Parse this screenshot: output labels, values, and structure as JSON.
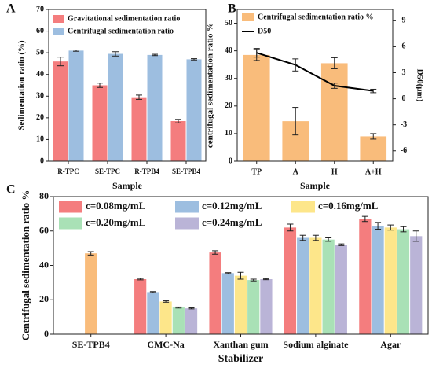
{
  "chart_data": [
    {
      "type": "bar",
      "panel": "A",
      "xlabel": "Sample",
      "ylabel": "Sedimentation ratio (%)",
      "categories": [
        "R-TPC",
        "SE-TPC",
        "R-TPB4",
        "SE-TPB4"
      ],
      "ylim": [
        0,
        70
      ],
      "yticks": [
        0,
        10,
        20,
        30,
        40,
        50,
        60,
        70
      ],
      "legend": "upper left",
      "series": [
        {
          "name": "Gravitational sedimentation ratio",
          "color": "#f47d7e",
          "values": [
            46,
            35,
            29.5,
            18.5
          ],
          "errors": [
            2,
            1,
            1,
            0.8
          ]
        },
        {
          "name": "Centrifugal sedimentation ratio",
          "color": "#9dbee0",
          "values": [
            51,
            49.5,
            49,
            47
          ],
          "errors": [
            0.3,
            1,
            0.3,
            0.3
          ]
        }
      ]
    },
    {
      "type": "bar",
      "panel": "B",
      "xlabel": "Sample",
      "ylabel": "centrifugal sedimentation ratio %",
      "y2label": "D50(μm)",
      "categories": [
        "TP",
        "A",
        "H",
        "A+H"
      ],
      "ylim": [
        0,
        55
      ],
      "yticks": [
        0,
        10,
        20,
        30,
        40,
        50
      ],
      "y2lim": [
        -7.2,
        10.3
      ],
      "y2ticks": [
        -6,
        -3,
        0,
        3,
        6,
        9
      ],
      "legend": "upper left",
      "series": [
        {
          "name": "Centrifugal sedimentation ratio %",
          "color": "#f9bc7b",
          "values": [
            38.5,
            14.5,
            35.5,
            9
          ],
          "errors": [
            2,
            5,
            2,
            1
          ]
        },
        {
          "name": "D50",
          "type": "line",
          "axis": "y2",
          "color": "#000000",
          "values": [
            5.3,
            3.9,
            1.5,
            0.9
          ],
          "errors": [
            0.5,
            0.7,
            0.3,
            0.2
          ]
        }
      ]
    },
    {
      "type": "bar",
      "panel": "C",
      "xlabel": "Stabilizer",
      "ylabel": "Centrifugal sedimentation ratio %",
      "categories": [
        "SE-TPB4",
        "CMC-Na",
        "Xanthan gum",
        "Sodium alginate",
        "Agar"
      ],
      "ylim": [
        0,
        80
      ],
      "yticks": [
        0,
        20,
        40,
        60,
        80
      ],
      "legend": "upper left",
      "series": [
        {
          "color": "#f9bc7b",
          "values": [
            47,
            null,
            null,
            null,
            null
          ],
          "errors": [
            1,
            null,
            null,
            null,
            null
          ]
        },
        {
          "name": "c=0.08mg/mL",
          "color": "#f47d7e",
          "values": [
            null,
            32,
            47.5,
            62,
            67
          ],
          "errors": [
            null,
            0.4,
            1,
            2,
            1.5
          ]
        },
        {
          "name": "c=0.12mg/mL",
          "color": "#9dbee0",
          "values": [
            null,
            24.5,
            35.5,
            56,
            63
          ],
          "errors": [
            null,
            0.3,
            0.3,
            1.5,
            2
          ]
        },
        {
          "name": "c=0.16mg/mL",
          "color": "#fde68a",
          "values": [
            null,
            19,
            34,
            56,
            62
          ],
          "errors": [
            null,
            0.4,
            2,
            1.5,
            1.5
          ]
        },
        {
          "name": "c=0.20mg/mL",
          "color": "#a9e1b6",
          "values": [
            null,
            15.5,
            31.5,
            55,
            61
          ],
          "errors": [
            null,
            0.3,
            0.5,
            1,
            1.5
          ]
        },
        {
          "name": "c=0.24mg/mL",
          "color": "#bab4d7",
          "values": [
            null,
            15,
            32,
            52,
            57
          ],
          "errors": [
            null,
            0.3,
            0.3,
            0.5,
            3
          ]
        }
      ]
    }
  ]
}
